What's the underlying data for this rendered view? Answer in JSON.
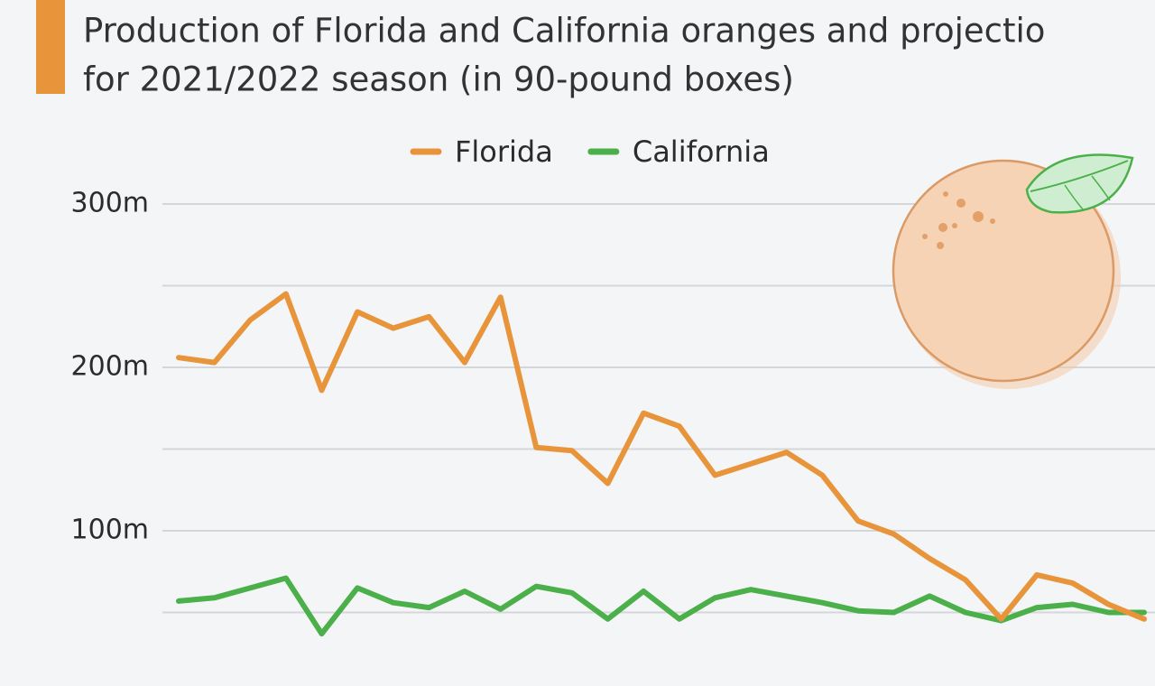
{
  "chart_data": {
    "type": "line",
    "title": [
      "Production of Florida and California oranges and projectio",
      "for 2021/2022 season (in 90-pound boxes)"
    ],
    "categories": [
      null,
      null,
      null,
      null,
      null,
      null,
      null,
      null,
      null,
      null,
      null,
      null,
      null,
      null,
      null,
      null,
      null,
      null,
      null,
      null,
      null,
      null,
      null,
      null,
      null,
      null,
      null,
      null
    ],
    "series": [
      {
        "name": "Florida",
        "color": "#e8943a",
        "values": [
          206,
          203,
          229,
          245,
          186,
          234,
          224,
          231,
          203,
          243,
          151,
          149,
          129,
          172,
          164,
          134,
          141,
          148,
          134,
          106,
          98,
          83,
          70,
          46,
          73,
          68,
          55,
          46
        ]
      },
      {
        "name": "California",
        "color": "#4cb04a",
        "values": [
          57,
          59,
          65,
          71,
          37,
          65,
          56,
          53,
          63,
          52,
          66,
          62,
          46,
          63,
          46,
          59,
          64,
          60,
          56,
          51,
          50,
          60,
          50,
          45,
          53,
          55,
          50,
          50
        ]
      }
    ],
    "ylim": [
      5,
      300
    ],
    "yticks": [
      {
        "value": 100,
        "label": "100m"
      },
      {
        "value": 200,
        "label": "200m"
      },
      {
        "value": 300,
        "label": "300m"
      }
    ],
    "minor_gridlines": [
      50,
      150,
      250
    ],
    "grid": true,
    "legend": "top"
  }
}
